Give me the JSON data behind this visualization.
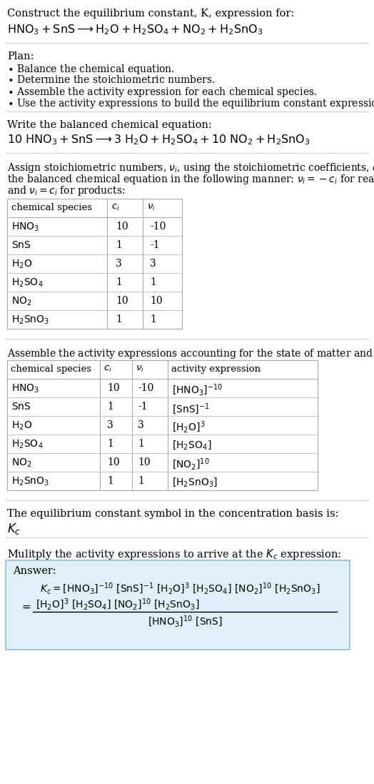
{
  "bg_color": "#ffffff",
  "answer_bg_color": "#dff0f8",
  "answer_border_color": "#90bfd4",
  "sections": {
    "title1": "Construct the equilibrium constant, K, expression for:",
    "eq_unbal": "HNO_3 + SnS \\longrightarrow H_2O + H_2SO_4 + NO_2 + H_2SnO_3",
    "plan_header": "Plan:",
    "plan_items": [
      "\\bullet Balance the chemical equation.",
      "\\bullet Determine the stoichiometric numbers.",
      "\\bullet Assemble the activity expression for each chemical species.",
      "\\bullet Use the activity expressions to build the equilibrium constant expression."
    ],
    "balanced_header": "Write the balanced chemical equation:",
    "eq_bal": "10 HNO_3 + SnS \\longrightarrow 3 H_2O + H_2SO_4 + 10 NO_2 + H_2SnO_3",
    "stoich_header_parts": [
      "Assign stoichiometric numbers, \\nu_i, using the stoichiometric coefficients, c_i, from",
      "the balanced chemical equation in the following manner: \\nu_i = -c_i for reactants",
      "and \\nu_i = c_i for products:"
    ],
    "table1_col_headers": [
      "chemical species",
      "c_i",
      "\\nu_i"
    ],
    "table1_rows": [
      [
        "HNO_3",
        "10",
        "-10"
      ],
      [
        "SnS",
        "1",
        "-1"
      ],
      [
        "H_2O",
        "3",
        "3"
      ],
      [
        "H_2SO_4",
        "1",
        "1"
      ],
      [
        "NO_2",
        "10",
        "10"
      ],
      [
        "H_2SnO_3",
        "1",
        "1"
      ]
    ],
    "act_header": "Assemble the activity expressions accounting for the state of matter and \\nu_i:",
    "table2_col_headers": [
      "chemical species",
      "c_i",
      "\\nu_i",
      "activity expression"
    ],
    "table2_rows": [
      [
        "HNO_3",
        "10",
        "-10",
        "[HNO_3]^{-10}"
      ],
      [
        "SnS",
        "1",
        "-1",
        "[SnS]^{-1}"
      ],
      [
        "H_2O",
        "3",
        "3",
        "[H_2O]^3"
      ],
      [
        "H_2SO_4",
        "1",
        "1",
        "[H_2SO_4]"
      ],
      [
        "NO_2",
        "10",
        "10",
        "[NO_2]^{10}"
      ],
      [
        "H_2SnO_3",
        "1",
        "1",
        "[H_2SnO_3]"
      ]
    ],
    "kc_header": "The equilibrium constant symbol in the concentration basis is:",
    "kc_symbol": "K_c",
    "mult_header": "Mulitply the activity expressions to arrive at the K_c expression:",
    "answer_label": "Answer:",
    "kc_eq1": "K_c = [HNO_3]^{-10} [SnS]^{-1} [H_2O]^3 [H_2SO_4] [NO_2]^{10} [H_2SnO_3]",
    "kc_num": "[H_2O]^3 [H_2SO_4] [NO_2]^{10} [H_2SnO_3]",
    "kc_den": "[HNO_3]^{10} [SnS]"
  }
}
